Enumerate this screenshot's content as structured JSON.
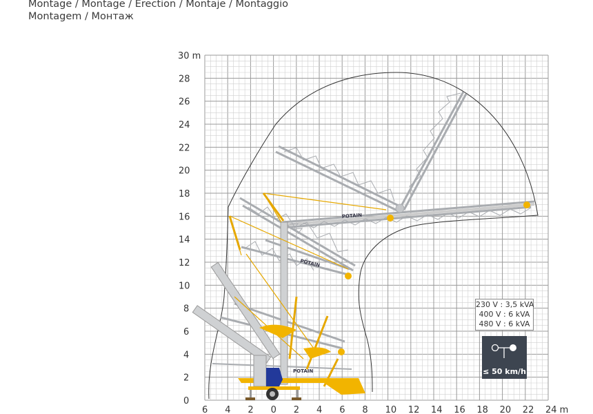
{
  "header": {
    "title_line1": "Montage / Montage / Erection / Montaje / Montaggio",
    "title_line2": "Montagem / Монтаж"
  },
  "diagram": {
    "x_ticks": [
      "6",
      "4",
      "2",
      "0",
      "2",
      "4",
      "6",
      "8",
      "10",
      "12",
      "14",
      "16",
      "18",
      "20",
      "22",
      "24 m"
    ],
    "y_ticks": [
      "0",
      "2",
      "4",
      "6",
      "8",
      "10",
      "12",
      "14",
      "16",
      "18",
      "20",
      "22",
      "24",
      "26",
      "28",
      "30 m"
    ],
    "brand_label": "POTAIN",
    "colors": {
      "crane_yellow": "#f2b400",
      "lattice_grey": "#a9acb0",
      "grid": "#bdbdbd",
      "panel": "#3d4550",
      "chassis_blue": "#22399a"
    }
  },
  "power": {
    "lines": [
      "230 V : 3,5 kVA",
      "400 V : 6 kVA",
      "480 V : 6 kVA"
    ]
  },
  "wind": {
    "icon": "anemometer-icon",
    "label": "≤ 50 km/h"
  }
}
